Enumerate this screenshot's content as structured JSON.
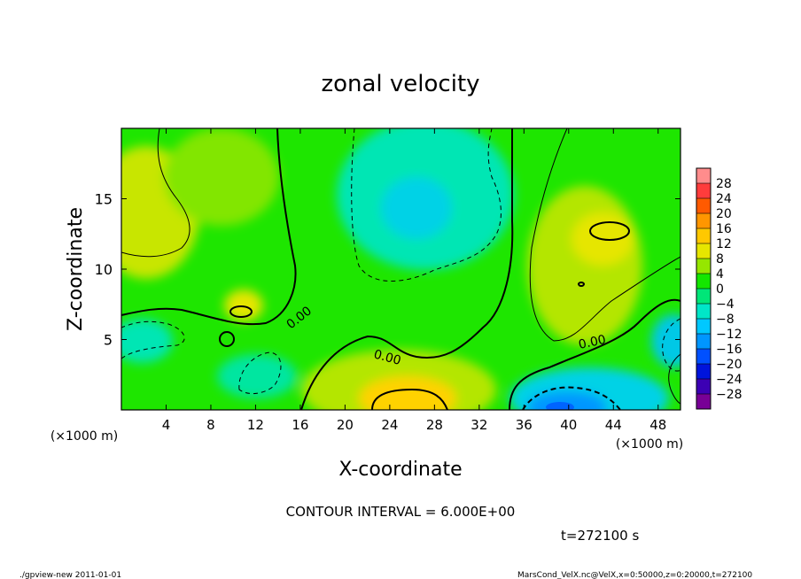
{
  "chart_data": {
    "type": "heatmap",
    "title": "zonal velocity",
    "xlabel": "X-coordinate",
    "ylabel": "Z-coordinate",
    "x_unit_label": "(×1000 m)",
    "z_unit_label": "(×1000 m)",
    "x_ticks": [
      "4",
      "8",
      "12",
      "16",
      "20",
      "24",
      "28",
      "32",
      "36",
      "40",
      "44",
      "48"
    ],
    "y_ticks": [
      "5",
      "10",
      "15"
    ],
    "xlim": [
      0,
      50
    ],
    "ylim": [
      0,
      20
    ],
    "colorbar_levels": [
      "28",
      "24",
      "20",
      "16",
      "12",
      "8",
      "4",
      "0",
      "−4",
      "−8",
      "−12",
      "−16",
      "−20",
      "−24",
      "−28"
    ],
    "contour_labels": [
      "0.00",
      "0.00",
      "0.00"
    ],
    "contour_interval_text": "CONTOUR INTERVAL = 6.000E+00",
    "time_text": "t=272100 s",
    "colors": {
      "background": "#14e600",
      "positive": "#dce600",
      "warm": "#ffb400",
      "negative": "#00dcc8",
      "cool": "#00b4ff",
      "deep": "#0028c8"
    }
  },
  "footer": {
    "left": "./gpview-new   2011-01-01",
    "right": "MarsCond_VelX.nc@VelX,x=0:50000,z=0:20000,t=272100"
  }
}
